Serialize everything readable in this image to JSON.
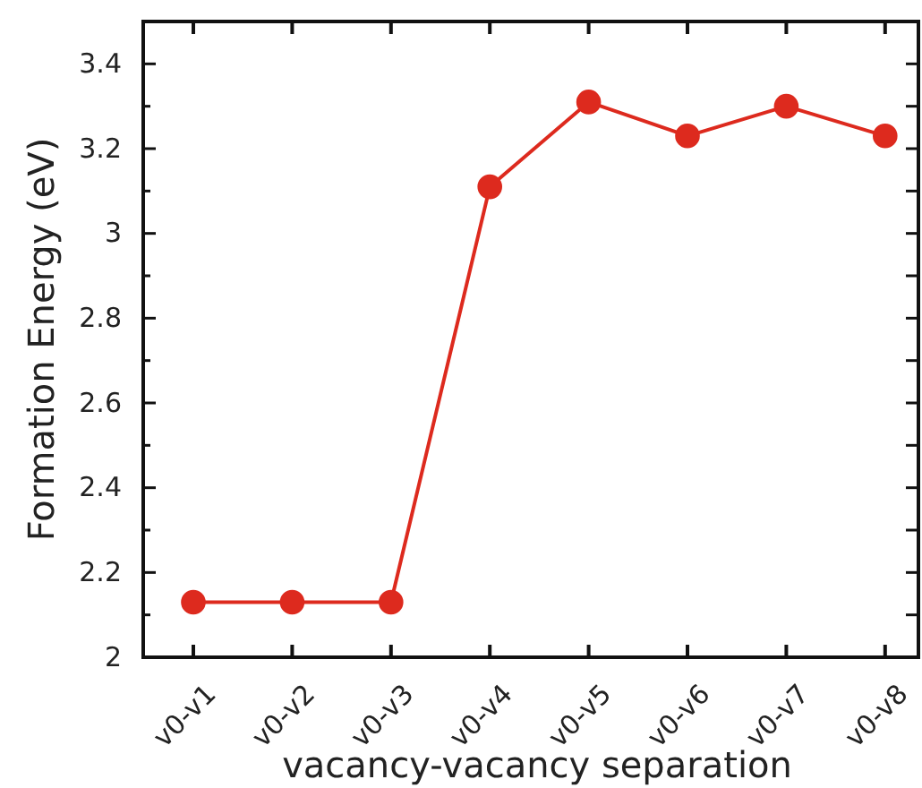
{
  "chart_data": {
    "type": "line",
    "xlabel": "vacancy-vacancy separation",
    "ylabel": "Formation Energy (eV)",
    "categories": [
      "v0-v1",
      "v0-v2",
      "v0-v3",
      "v0-v4",
      "v0-v5",
      "v0-v6",
      "v0-v7",
      "v0-v8"
    ],
    "series": [
      {
        "color": "#dd2a1e",
        "values": [
          2.13,
          2.13,
          2.13,
          3.11,
          3.31,
          3.23,
          3.3,
          3.23
        ]
      }
    ],
    "ylim": [
      2,
      3.5
    ],
    "yticks": [
      2,
      2.2,
      2.4,
      2.6,
      2.8,
      3,
      3.2,
      3.4
    ],
    "marker": "circle",
    "line_style": "solid",
    "grid": false
  }
}
